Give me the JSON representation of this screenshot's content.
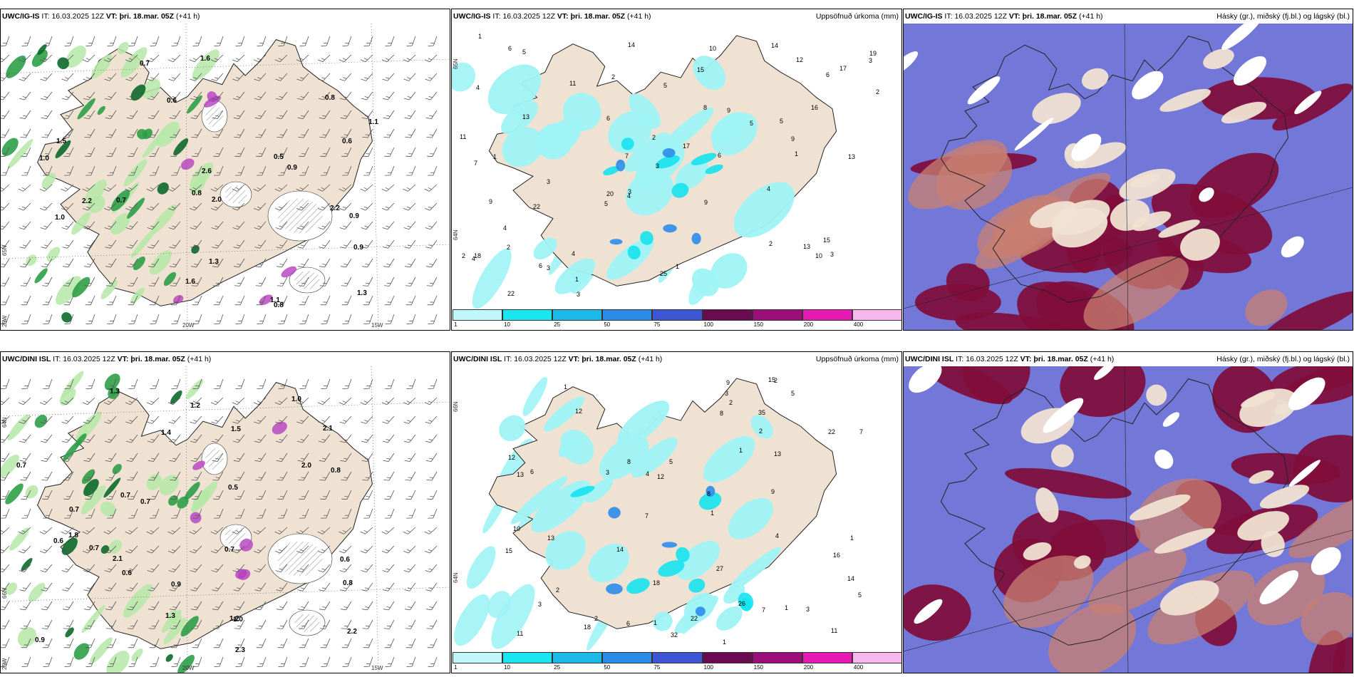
{
  "colors": {
    "land": "#f0e2d2",
    "coast": "#222222",
    "precip_light": "#9ff3f5",
    "precip_cyan": "#16e3ee",
    "precip_blue": "#2e8dea",
    "precip_purple": "#b43ec0",
    "precip_light_green": "#b5e8a8",
    "precip_green": "#2e9e48",
    "precip_dark_green": "#0b6a2a",
    "cloud_high": "#800d3a",
    "cloud_mid": "#5a5fd0",
    "cloud_low": "#c87f70"
  },
  "rows": [
    {
      "model": "UWC/IG-IS",
      "it_label": "IT:",
      "it_value": "16.03.2025 12Z",
      "vt_label": "VT:",
      "vt_value": "þri. 18.mar. 05Z",
      "lead": "(+41 h)",
      "panel1_labels": [
        "0.9",
        "2.2",
        "0.8",
        "0.6",
        "0.6",
        "1.1",
        "1.1",
        "2.2",
        "2.0",
        "1.6",
        "1.6",
        "0.5",
        "0.9",
        "0.8",
        "1.3",
        "1.5",
        "1.0",
        "0.7",
        "1.3",
        "1.0",
        "0.8",
        "2.6",
        "0.9",
        "0.7"
      ],
      "panel1_axes": {
        "lat": "65N",
        "lon_left": "25W",
        "lon_mid": "20W",
        "lon_right": "15W"
      },
      "panel2_title": "Uppsöfnuð úrkoma (mm)",
      "panel2_numbers": [
        "15",
        "10",
        "2",
        "2",
        "1",
        "4",
        "5",
        "7",
        "9",
        "11",
        "3",
        "2",
        "4",
        "4",
        "12",
        "9",
        "5",
        "7",
        "6",
        "3",
        "13",
        "6",
        "22",
        "25",
        "5",
        "17",
        "20",
        "14",
        "3",
        "4",
        "22",
        "11",
        "9",
        "13",
        "18",
        "9",
        "10",
        "16",
        "19",
        "17",
        "14",
        "8",
        "3",
        "1",
        "4",
        "3",
        "6",
        "5",
        "15",
        "4",
        "2",
        "1",
        "1",
        "1",
        "5",
        "2",
        "3",
        "6",
        "3",
        "6",
        "2",
        "13"
      ],
      "panel2_axes": {
        "lat_top": "65N",
        "lat_bottom": "64N"
      },
      "panel3_title": "Hásky (gr.), miðský (fj.bl.) og lágský (bl.)"
    },
    {
      "model": "UWC/DINI ISL",
      "it_label": "IT:",
      "it_value": "16.03.2025 12Z",
      "vt_label": "VT:",
      "vt_value": "þri. 18.mar. 05Z",
      "lead": "(+41 h)",
      "panel1_labels": [
        "1.0",
        "2.1",
        "1.2",
        "0.6",
        "0.7",
        "0.7",
        "0.9",
        "0.5",
        "1.8",
        "2.0",
        "0.8",
        "1.0",
        "2.3",
        "1.3",
        "0.7",
        "0.8",
        "1.2",
        "1.3",
        "0.6",
        "0.9",
        "2.1",
        "0.7",
        "1.5",
        "1.4",
        "0.7",
        "0.6",
        "0.7",
        "2.2"
      ],
      "panel1_axes": {
        "lat": "66N",
        "lat2": "64N",
        "lon_left": "25W",
        "lon_mid": "20W",
        "lon_right": "15W"
      },
      "panel2_title": "Uppsöfnuð úrkoma (mm)",
      "panel2_numbers": [
        "2",
        "1",
        "1",
        "2",
        "8",
        "7",
        "6",
        "3",
        "11",
        "14",
        "9",
        "13",
        "22",
        "18",
        "12",
        "27",
        "32",
        "26",
        "7",
        "8",
        "35",
        "14",
        "16",
        "13",
        "9",
        "15",
        "15",
        "22",
        "18",
        "10",
        "12",
        "8",
        "13",
        "5",
        "11",
        "12",
        "2",
        "1",
        "1",
        "1",
        "3",
        "4",
        "4",
        "5",
        "2",
        "5",
        "7",
        "2",
        "3",
        "6",
        "1",
        "3",
        "1"
      ],
      "panel2_axes": {
        "lat_top": "66N",
        "lat_bottom": "64N"
      },
      "panel3_title": "Hásky (gr.), miðský (fj.bl.) og lágský (bl.)"
    }
  ],
  "colorbar": {
    "ticks": [
      "1",
      "10",
      "25",
      "50",
      "75",
      "100",
      "150",
      "200",
      "400"
    ],
    "colors": [
      "#bff7fa",
      "#19e6f0",
      "#1bb9ea",
      "#2b8be6",
      "#3e55d6",
      "#6a0a50",
      "#9b0e7a",
      "#e51ab2",
      "#f5b7ee"
    ]
  }
}
